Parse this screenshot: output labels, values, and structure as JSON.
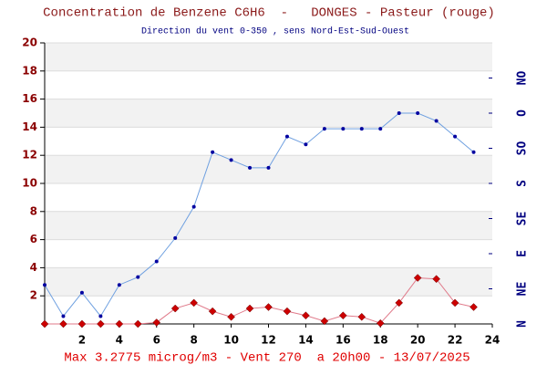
{
  "chart_data": {
    "type": "line",
    "title": "Concentration de Benzene C6H6  -   DONGES - Pasteur (rouge)",
    "subtitle": "Direction du vent 0-350 , sens Nord-Est-Sud-Ouest",
    "footer": "Max 3.2775 microg/m3 - Vent 270  a 20h00 - 13/07/2025",
    "x": [
      0,
      1,
      2,
      3,
      4,
      5,
      6,
      7,
      8,
      9,
      10,
      11,
      12,
      13,
      14,
      15,
      16,
      17,
      18,
      19,
      20,
      21,
      22,
      23
    ],
    "xlim": [
      0,
      24
    ],
    "xticks": [
      2,
      4,
      6,
      8,
      10,
      12,
      14,
      16,
      18,
      20,
      22,
      24
    ],
    "ylim": [
      0,
      20
    ],
    "yticks": [
      2,
      4,
      6,
      8,
      10,
      12,
      14,
      16,
      18,
      20
    ],
    "y2lim": [
      0,
      360
    ],
    "y2ticks": [
      {
        "value": 0,
        "label": "N"
      },
      {
        "value": 45,
        "label": "NE"
      },
      {
        "value": 90,
        "label": "E"
      },
      {
        "value": 135,
        "label": "SE"
      },
      {
        "value": 180,
        "label": "S"
      },
      {
        "value": 225,
        "label": "SO"
      },
      {
        "value": 270,
        "label": "O"
      },
      {
        "value": 315,
        "label": "NO"
      }
    ],
    "grid": true,
    "series": [
      {
        "color": "#6fa0e0",
        "marker_color": "#0000a0",
        "marker": "circle",
        "axis": "y2",
        "values": [
          50,
          10,
          40,
          10,
          50,
          60,
          80,
          110,
          150,
          220,
          210,
          200,
          200,
          240,
          230,
          250,
          250,
          250,
          250,
          270,
          270,
          260,
          240,
          220
        ]
      },
      {
        "color": "#e07a8a",
        "marker_color": "#cc0000",
        "marker": "diamond",
        "values": [
          0,
          0,
          0,
          0,
          0,
          0,
          0.1,
          1.1,
          1.5,
          0.9,
          0.5,
          1.1,
          1.2,
          0.9,
          0.6,
          0.2,
          0.6,
          0.5,
          0.05,
          1.5,
          3.2775,
          3.2,
          1.5,
          1.2
        ]
      }
    ]
  }
}
